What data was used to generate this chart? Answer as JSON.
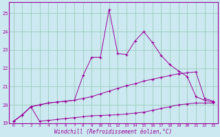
{
  "background_color": "#cce8f0",
  "grid_color": "#99ccbb",
  "line_color": "#990099",
  "xlabel": "Windchill (Refroidissement éolien,°C)",
  "xlim": [
    -0.5,
    23.5
  ],
  "ylim": [
    19.0,
    25.6
  ],
  "yticks": [
    19,
    20,
    21,
    22,
    23,
    24,
    25
  ],
  "xticks": [
    0,
    1,
    2,
    3,
    4,
    5,
    6,
    7,
    8,
    9,
    10,
    11,
    12,
    13,
    14,
    15,
    16,
    17,
    18,
    19,
    20,
    21,
    22,
    23
  ],
  "y_bottom": [
    19.1,
    19.45,
    19.9,
    19.1,
    19.15,
    19.2,
    19.25,
    19.3,
    19.35,
    19.4,
    19.42,
    19.44,
    19.46,
    19.5,
    19.55,
    19.6,
    19.7,
    19.8,
    19.9,
    20.0,
    20.05,
    20.1,
    20.1,
    20.1
  ],
  "y_mid": [
    19.1,
    19.45,
    19.9,
    20.0,
    20.1,
    20.15,
    20.2,
    20.25,
    20.35,
    20.45,
    20.6,
    20.75,
    20.9,
    21.05,
    21.15,
    21.3,
    21.4,
    21.5,
    21.6,
    21.7,
    21.75,
    21.8,
    20.35,
    20.2
  ],
  "y_top": [
    19.1,
    19.45,
    19.9,
    20.0,
    20.1,
    20.15,
    20.2,
    20.25,
    21.6,
    22.6,
    22.6,
    25.2,
    22.8,
    22.75,
    23.5,
    24.0,
    23.4,
    22.7,
    22.2,
    21.85,
    21.55,
    20.45,
    20.25,
    20.15
  ]
}
